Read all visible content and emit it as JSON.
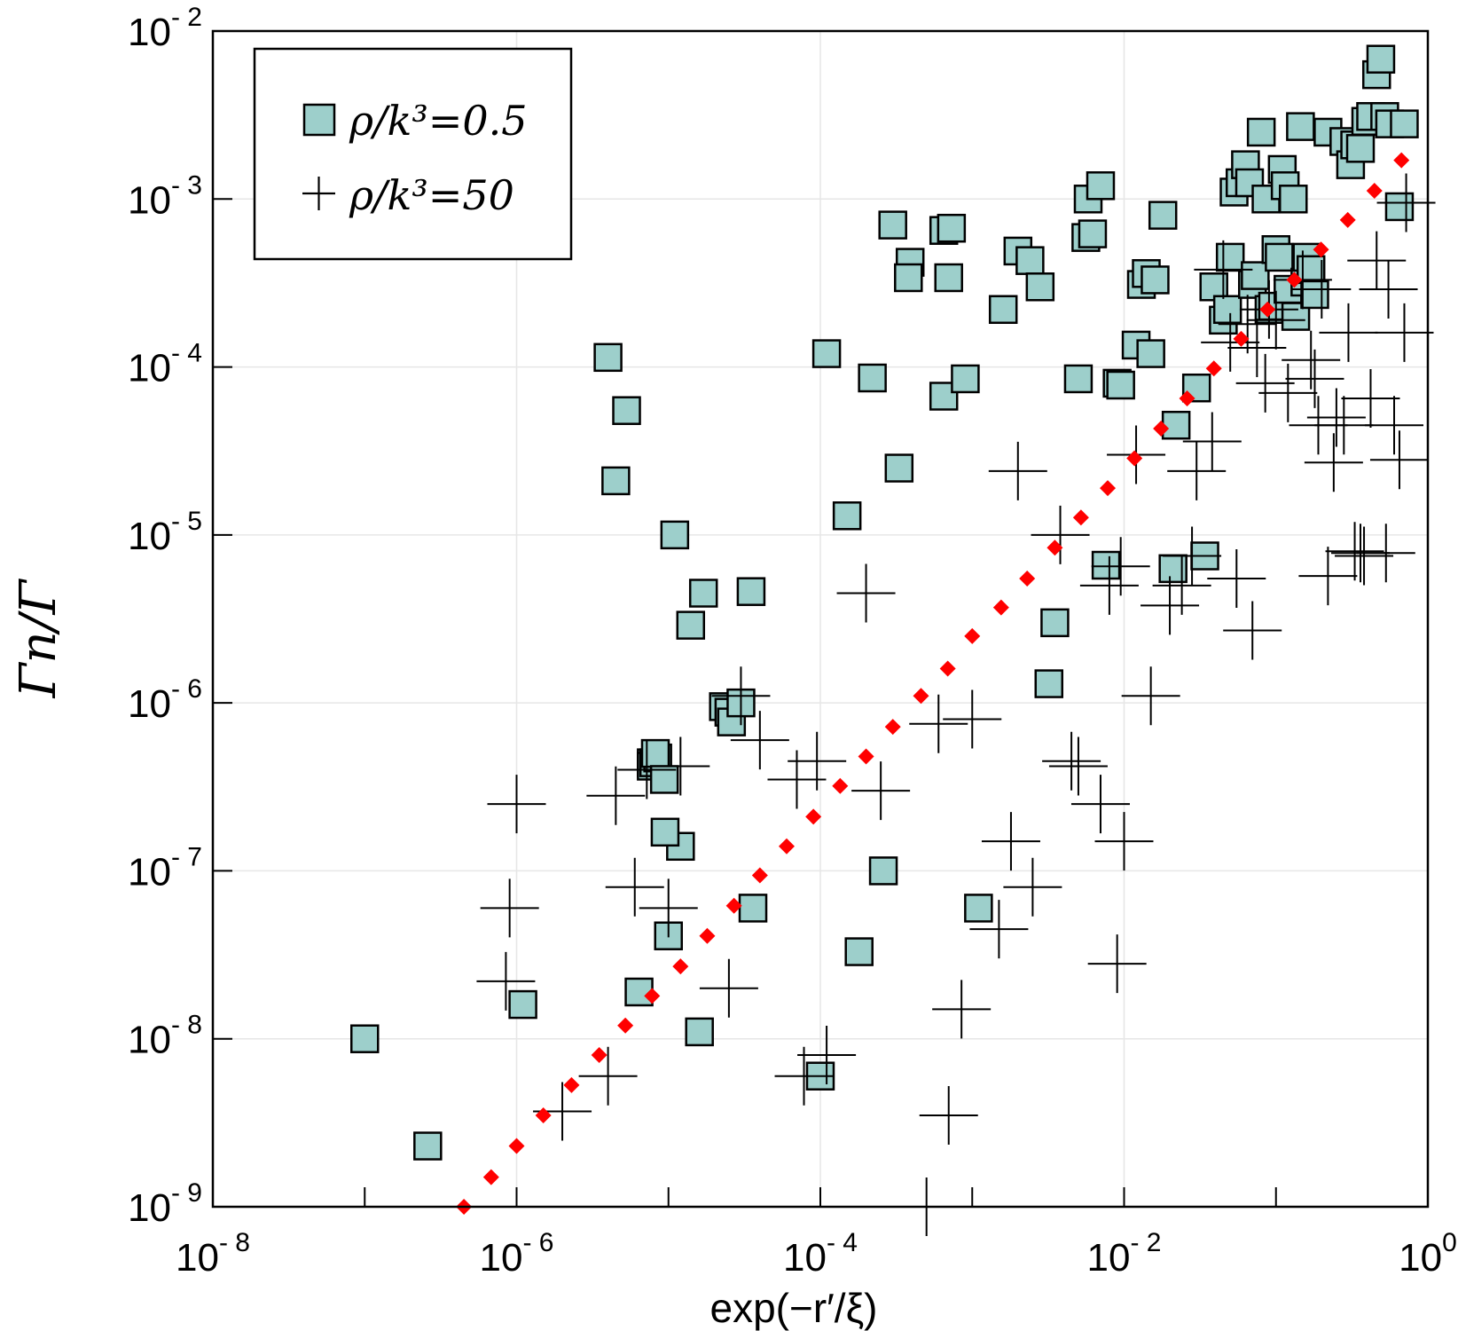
{
  "chart_data": {
    "type": "scatter",
    "title": "",
    "xlabel": "exp(−r′/ξ)",
    "ylabel": "Γn/Γ",
    "xscale": "log",
    "yscale": "log",
    "xlim": [
      1e-08,
      1
    ],
    "ylim": [
      1e-09,
      0.01
    ],
    "grid": true,
    "legend": "top-left",
    "x_ticks": [
      {
        "base": "10",
        "exp": "- 8",
        "value": 1e-08
      },
      {
        "base": "10",
        "exp": "- 6",
        "value": 1e-06
      },
      {
        "base": "10",
        "exp": "- 4",
        "value": 0.0001
      },
      {
        "base": "10",
        "exp": "- 2",
        "value": 0.01
      },
      {
        "base": "10",
        "exp": "0",
        "value": 1
      }
    ],
    "y_ticks": [
      {
        "base": "10",
        "exp": "- 9",
        "value": 1e-09
      },
      {
        "base": "10",
        "exp": "- 8",
        "value": 1e-08
      },
      {
        "base": "10",
        "exp": "- 7",
        "value": 1e-07
      },
      {
        "base": "10",
        "exp": "- 6",
        "value": 1e-06
      },
      {
        "base": "10",
        "exp": "- 5",
        "value": 1e-05
      },
      {
        "base": "10",
        "exp": "- 4",
        "value": 0.0001
      },
      {
        "base": "10",
        "exp": "- 3",
        "value": 0.001
      },
      {
        "base": "10",
        "exp": "- 2",
        "value": 0.01
      }
    ],
    "series": [
      {
        "name": "ρ/k³=0.5",
        "marker": "square",
        "color": "#9dcfcb",
        "edge": "#000000",
        "points": [
          [
            1e-07,
            1e-08
          ],
          [
            2.6e-07,
            2.3e-09
          ],
          [
            1.1e-06,
            1.6e-08
          ],
          [
            4e-06,
            0.000114
          ],
          [
            4.5e-06,
            2.1e-05
          ],
          [
            5.3e-06,
            5.5e-05
          ],
          [
            6.4e-06,
            1.9e-08
          ],
          [
            7.7e-06,
            4.4e-07
          ],
          [
            7.7e-06,
            4.2e-07
          ],
          [
            8e-06,
            4.4e-07
          ],
          [
            8.5e-06,
            4.7e-07
          ],
          [
            8.2e-06,
            5e-07
          ],
          [
            9.4e-06,
            3.5e-07
          ],
          [
            1e-05,
            4.1e-08
          ],
          [
            1.1e-05,
            1e-05
          ],
          [
            1.2e-05,
            1.4e-07
          ],
          [
            1.4e-05,
            2.9e-06
          ],
          [
            1.6e-05,
            1.1e-08
          ],
          [
            1.7e-05,
            4.5e-06
          ],
          [
            2.3e-05,
            9.5e-07
          ],
          [
            2.5e-05,
            8.8e-07
          ],
          [
            2.6e-05,
            7.7e-07
          ],
          [
            3e-05,
            1e-06
          ],
          [
            3.5e-05,
            4.6e-06
          ],
          [
            3.6e-05,
            6e-08
          ],
          [
            9.5e-06,
            1.7e-07
          ],
          [
            0.0001,
            6e-09
          ],
          [
            0.00011,
            0.00012
          ],
          [
            0.00022,
            8.6e-05
          ],
          [
            0.00015,
            1.3e-05
          ],
          [
            0.00018,
            3.3e-08
          ],
          [
            0.00026,
            1e-07
          ],
          [
            0.00033,
            2.5e-05
          ],
          [
            0.00039,
            0.00042
          ],
          [
            0.00038,
            0.00034
          ],
          [
            0.0003,
            0.0007
          ],
          [
            0.00065,
            0.00065
          ],
          [
            0.00073,
            0.00067
          ],
          [
            0.00065,
            6.7e-05
          ],
          [
            0.0007,
            0.00034
          ],
          [
            0.0009,
            8.5e-05
          ],
          [
            0.0011,
            6e-08
          ],
          [
            0.0016,
            0.00022
          ],
          [
            0.002,
            0.00049
          ],
          [
            0.0024,
            0.00043
          ],
          [
            0.0028,
            0.0003
          ],
          [
            0.0032,
            1.3e-06
          ],
          [
            0.0035,
            3e-06
          ],
          [
            0.005,
            8.5e-05
          ],
          [
            0.0056,
            0.00059
          ],
          [
            0.0058,
            0.001
          ],
          [
            0.0062,
            0.00062
          ],
          [
            0.007,
            0.0012
          ],
          [
            0.0076,
            6.6e-06
          ],
          [
            0.009,
            8e-05
          ],
          [
            0.0095,
            7.8e-05
          ],
          [
            0.012,
            0.000135
          ],
          [
            0.013,
            0.00031
          ],
          [
            0.014,
            0.00036
          ],
          [
            0.015,
            0.00012
          ],
          [
            0.016,
            0.00033
          ],
          [
            0.018,
            0.0008
          ],
          [
            0.021,
            6.3e-06
          ],
          [
            0.022,
            4.5e-05
          ],
          [
            0.03,
            7.5e-05
          ],
          [
            0.034,
            7.5e-06
          ],
          [
            0.039,
            0.0003
          ],
          [
            0.045,
            0.00019
          ],
          [
            0.048,
            0.00022
          ],
          [
            0.05,
            0.00045
          ],
          [
            0.053,
            0.0011
          ],
          [
            0.058,
            0.00125
          ],
          [
            0.063,
            0.0016
          ],
          [
            0.067,
            0.00125
          ],
          [
            0.07,
            0.00031
          ],
          [
            0.073,
            0.00035
          ],
          [
            0.08,
            0.0025
          ],
          [
            0.086,
            0.001
          ],
          [
            0.09,
            0.00022
          ],
          [
            0.095,
            0.00023
          ],
          [
            0.1,
            0.0005
          ],
          [
            0.105,
            0.00045
          ],
          [
            0.11,
            0.0015
          ],
          [
            0.115,
            0.0012
          ],
          [
            0.12,
            0.00029
          ],
          [
            0.13,
            0.001
          ],
          [
            0.135,
            0.0002
          ],
          [
            0.145,
            0.0027
          ],
          [
            0.155,
            0.00032
          ],
          [
            0.16,
            0.00045
          ],
          [
            0.17,
            0.00038
          ],
          [
            0.18,
            0.00027
          ],
          [
            0.22,
            0.0025
          ],
          [
            0.28,
            0.0022
          ],
          [
            0.31,
            0.0016
          ],
          [
            0.33,
            0.0021
          ],
          [
            0.36,
            0.002
          ],
          [
            0.39,
            0.0029
          ],
          [
            0.42,
            0.0031
          ],
          [
            0.46,
            0.0055
          ],
          [
            0.49,
            0.0068
          ],
          [
            0.52,
            0.0031
          ],
          [
            0.56,
            0.0028
          ],
          [
            0.65,
            0.0009
          ],
          [
            0.7,
            0.0028
          ]
        ]
      },
      {
        "name": "ρ/k³=50",
        "marker": "plus",
        "color": "#000000",
        "points": [
          [
            1e-06,
            2.5e-07
          ],
          [
            9e-07,
            6e-08
          ],
          [
            8.5e-07,
            2.2e-08
          ],
          [
            2e-06,
            3.7e-09
          ],
          [
            4.5e-06,
            2.8e-07
          ],
          [
            4e-06,
            6e-09
          ],
          [
            6e-06,
            8e-08
          ],
          [
            7.2e-06,
            4e-07
          ],
          [
            1e-05,
            6e-08
          ],
          [
            1.2e-05,
            4.2e-07
          ],
          [
            2.5e-05,
            2e-08
          ],
          [
            3e-05,
            1.1e-06
          ],
          [
            4e-05,
            6e-07
          ],
          [
            7e-05,
            3.5e-07
          ],
          [
            7.8e-05,
            6e-09
          ],
          [
            9.5e-05,
            4.5e-07
          ],
          [
            0.00011,
            8e-09
          ],
          [
            0.0002,
            4.5e-06
          ],
          [
            0.00025,
            3e-07
          ],
          [
            0.0005,
            1e-09
          ],
          [
            0.0006,
            7.5e-07
          ],
          [
            0.0007,
            3.5e-09
          ],
          [
            0.00085,
            1.5e-08
          ],
          [
            0.001,
            8e-07
          ],
          [
            0.0015,
            4.5e-08
          ],
          [
            0.0018,
            1.5e-07
          ],
          [
            0.002,
            2.4e-05
          ],
          [
            0.0025,
            8e-08
          ],
          [
            0.0038,
            1e-05
          ],
          [
            0.0045,
            4.5e-07
          ],
          [
            0.005,
            4.2e-07
          ],
          [
            0.007,
            2.5e-07
          ],
          [
            0.008,
            5e-06
          ],
          [
            0.009,
            2.8e-08
          ],
          [
            0.0095,
            6.5e-06
          ],
          [
            0.01,
            1.5e-07
          ],
          [
            0.012,
            3e-05
          ],
          [
            0.015,
            1.1e-06
          ],
          [
            0.02,
            3.8e-06
          ],
          [
            0.024,
            5e-06
          ],
          [
            0.028,
            7.5e-06
          ],
          [
            0.03,
            2.4e-05
          ],
          [
            0.038,
            3.6e-05
          ],
          [
            0.045,
            0.00038
          ],
          [
            0.05,
            0.00014
          ],
          [
            0.055,
            5.5e-06
          ],
          [
            0.065,
            0.00018
          ],
          [
            0.07,
            2.7e-06
          ],
          [
            0.075,
            0.00013
          ],
          [
            0.085,
            8e-05
          ],
          [
            0.09,
            0.00022
          ],
          [
            0.1,
            0.00019
          ],
          [
            0.12,
            7e-05
          ],
          [
            0.15,
            0.00033
          ],
          [
            0.17,
            0.00011
          ],
          [
            0.18,
            8.5e-05
          ],
          [
            0.19,
            4.5e-05
          ],
          [
            0.2,
            0.00029
          ],
          [
            0.22,
            5.7e-06
          ],
          [
            0.24,
            2.7e-05
          ],
          [
            0.25,
            5e-05
          ],
          [
            0.28,
            4.5e-05
          ],
          [
            0.3,
            0.00016
          ],
          [
            0.33,
            8e-06
          ],
          [
            0.36,
            7.8e-06
          ],
          [
            0.38,
            7.5e-06
          ],
          [
            0.42,
            6.5e-05
          ],
          [
            0.46,
            0.00043
          ],
          [
            0.53,
            7.8e-06
          ],
          [
            0.55,
            0.00029
          ],
          [
            0.6,
            4.5e-05
          ],
          [
            0.65,
            2.8e-05
          ],
          [
            0.7,
            0.00016
          ],
          [
            0.72,
            0.00095
          ]
        ]
      },
      {
        "name": "",
        "marker": "diamond",
        "color": "#ff0000",
        "points": [
          [
            4.5e-07,
            1e-09
          ],
          [
            6.8e-07,
            1.5e-09
          ],
          [
            1e-06,
            2.3e-09
          ],
          [
            1.5e-06,
            3.5e-09
          ],
          [
            2.3e-06,
            5.3e-09
          ],
          [
            3.5e-06,
            8e-09
          ],
          [
            5.2e-06,
            1.2e-08
          ],
          [
            7.8e-06,
            1.8e-08
          ],
          [
            1.2e-05,
            2.7e-08
          ],
          [
            1.8e-05,
            4.1e-08
          ],
          [
            2.7e-05,
            6.2e-08
          ],
          [
            4e-05,
            9.4e-08
          ],
          [
            6e-05,
            1.4e-07
          ],
          [
            9e-05,
            2.1e-07
          ],
          [
            0.000135,
            3.2e-07
          ],
          [
            0.0002,
            4.8e-07
          ],
          [
            0.0003,
            7.2e-07
          ],
          [
            0.00046,
            1.1e-06
          ],
          [
            0.00069,
            1.6e-06
          ],
          [
            0.001,
            2.5e-06
          ],
          [
            0.00155,
            3.7e-06
          ],
          [
            0.0023,
            5.5e-06
          ],
          [
            0.0035,
            8.4e-06
          ],
          [
            0.0052,
            1.27e-05
          ],
          [
            0.0078,
            1.9e-05
          ],
          [
            0.0117,
            2.86e-05
          ],
          [
            0.0175,
            4.3e-05
          ],
          [
            0.026,
            6.5e-05
          ],
          [
            0.039,
            9.8e-05
          ],
          [
            0.059,
            0.000147
          ],
          [
            0.088,
            0.00022
          ],
          [
            0.132,
            0.00033
          ],
          [
            0.198,
            0.0005
          ],
          [
            0.297,
            0.00075
          ],
          [
            0.445,
            0.00112
          ],
          [
            0.67,
            0.0017
          ]
        ]
      }
    ],
    "legend_entries": [
      {
        "marker": "square",
        "text": "ρ/k³=0.5"
      },
      {
        "marker": "plus",
        "text": "ρ/k³=50"
      }
    ]
  }
}
